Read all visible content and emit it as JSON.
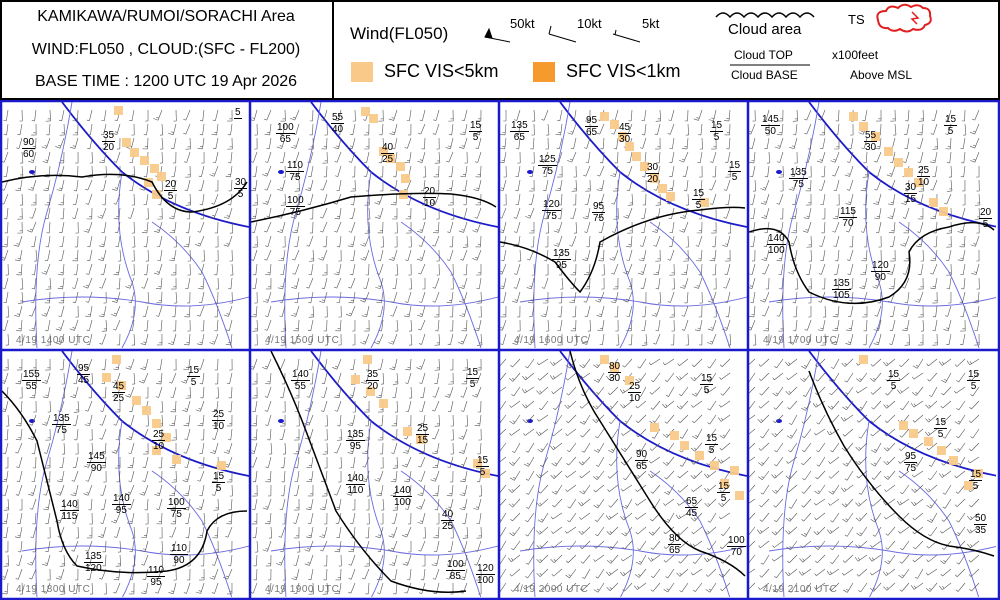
{
  "header": {
    "area": "KAMIKAWA/RUMOI/SORACHI Area",
    "layers": "WIND:FL050 , CLOUD:(SFC - FL200)",
    "base_time": "BASE TIME : 1200 UTC 19 Apr 2026"
  },
  "legend": {
    "wind_title": "Wind(FL050)",
    "wind_50": "50kt",
    "wind_10": "10kt",
    "wind_5": "5kt",
    "cloud_area": "Cloud area",
    "ts": "TS",
    "vis5": "SFC VIS<5km",
    "vis1": "SFC VIS<1km",
    "cloud_top": "Cloud TOP",
    "cloud_base": "Cloud BASE",
    "x100": "x100feet",
    "above_msl": "Above MSL",
    "colors": {
      "vis5": "#f9c98a",
      "vis1": "#f79a2e",
      "border": "#1a1acc",
      "ts": "#e02020"
    }
  },
  "panels": [
    {
      "time": "4/19 1400 UTC",
      "labels": [
        {
          "top": "90",
          "base": "60"
        },
        {
          "top": "35",
          "base": "20"
        },
        {
          "top": "5",
          "base": ""
        },
        {
          "top": "20",
          "base": "5"
        },
        {
          "top": "30",
          "base": "5"
        }
      ]
    },
    {
      "time": "4/19 1500 UTC",
      "labels": [
        {
          "top": "100",
          "base": "65"
        },
        {
          "top": "55",
          "base": "40"
        },
        {
          "top": "15",
          "base": "5"
        },
        {
          "top": "110",
          "base": "75"
        },
        {
          "top": "40",
          "base": "25"
        },
        {
          "top": "100",
          "base": "75"
        },
        {
          "top": "20",
          "base": "10"
        }
      ]
    },
    {
      "time": "4/19 1600 UTC",
      "labels": [
        {
          "top": "135",
          "base": "65"
        },
        {
          "top": "95",
          "base": "65"
        },
        {
          "top": "45",
          "base": "30"
        },
        {
          "top": "15",
          "base": "5"
        },
        {
          "top": "125",
          "base": "75"
        },
        {
          "top": "30",
          "base": "20"
        },
        {
          "top": "15",
          "base": "5"
        },
        {
          "top": "120",
          "base": "75"
        },
        {
          "top": "95",
          "base": "75"
        },
        {
          "top": "15",
          "base": "5"
        },
        {
          "top": "135",
          "base": "95"
        }
      ]
    },
    {
      "time": "4/19 1700 UTC",
      "labels": [
        {
          "top": "145",
          "base": "50"
        },
        {
          "top": "55",
          "base": "30"
        },
        {
          "top": "15",
          "base": "5"
        },
        {
          "top": "135",
          "base": "75"
        },
        {
          "top": "25",
          "base": "10"
        },
        {
          "top": "30",
          "base": "15"
        },
        {
          "top": "115",
          "base": "70"
        },
        {
          "top": "20",
          "base": "5"
        },
        {
          "top": "140",
          "base": "100"
        },
        {
          "top": "120",
          "base": "90"
        },
        {
          "top": "135",
          "base": "105"
        }
      ]
    },
    {
      "time": "4/19 1800 UTC",
      "labels": [
        {
          "top": "155",
          "base": "55"
        },
        {
          "top": "95",
          "base": "45"
        },
        {
          "top": "15",
          "base": "5"
        },
        {
          "top": "45",
          "base": "25"
        },
        {
          "top": "135",
          "base": "75"
        },
        {
          "top": "25",
          "base": "10"
        },
        {
          "top": "25",
          "base": "10"
        },
        {
          "top": "145",
          "base": "90"
        },
        {
          "top": "15",
          "base": "5"
        },
        {
          "top": "140",
          "base": "95"
        },
        {
          "top": "100",
          "base": "75"
        },
        {
          "top": "140",
          "base": "115"
        },
        {
          "top": "135",
          "base": "120"
        },
        {
          "top": "110",
          "base": "90"
        },
        {
          "top": "110",
          "base": "95"
        }
      ]
    },
    {
      "time": "4/19 1900 UTC",
      "labels": [
        {
          "top": "140",
          "base": "55"
        },
        {
          "top": "35",
          "base": "20"
        },
        {
          "top": "15",
          "base": "5"
        },
        {
          "top": "135",
          "base": "95"
        },
        {
          "top": "25",
          "base": "15"
        },
        {
          "top": "15",
          "base": "5"
        },
        {
          "top": "140",
          "base": "110"
        },
        {
          "top": "140",
          "base": "100"
        },
        {
          "top": "40",
          "base": "25"
        },
        {
          "top": "100",
          "base": "85"
        },
        {
          "top": "120",
          "base": "100"
        }
      ]
    },
    {
      "time": "4/19 2000 UTC",
      "labels": [
        {
          "top": "80",
          "base": "30"
        },
        {
          "top": "25",
          "base": "10"
        },
        {
          "top": "15",
          "base": "5"
        },
        {
          "top": "15",
          "base": "5"
        },
        {
          "top": "90",
          "base": "65"
        },
        {
          "top": "15",
          "base": "5"
        },
        {
          "top": "65",
          "base": "45"
        },
        {
          "top": "80",
          "base": "65"
        },
        {
          "top": "100",
          "base": "70"
        }
      ]
    },
    {
      "time": "4/19 2100 UTC",
      "labels": [
        {
          "top": "15",
          "base": "5"
        },
        {
          "top": "15",
          "base": "5"
        },
        {
          "top": "15",
          "base": "5"
        },
        {
          "top": "95",
          "base": "75"
        },
        {
          "top": "15",
          "base": "5"
        },
        {
          "top": "50",
          "base": "35"
        }
      ]
    }
  ]
}
